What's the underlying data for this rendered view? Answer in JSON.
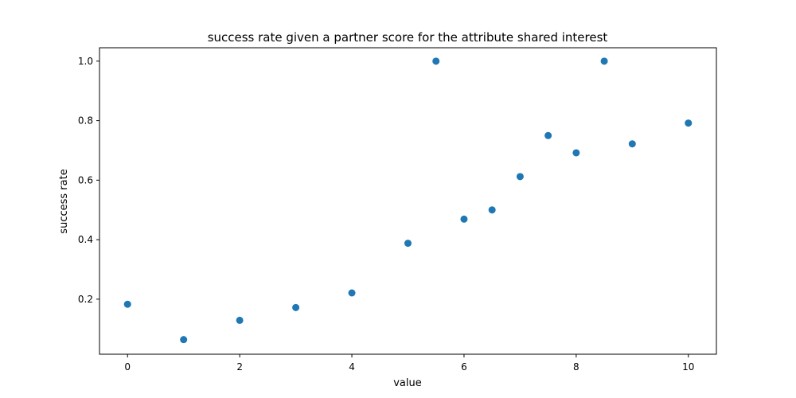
{
  "chart_data": {
    "type": "scatter",
    "title": "success rate given a partner score for the attribute shared interest",
    "xlabel": "value",
    "ylabel": "success rate",
    "xlim": [
      -0.5,
      10.5
    ],
    "ylim": [
      0.015,
      1.045
    ],
    "xticks": [
      0,
      2,
      4,
      6,
      8,
      10
    ],
    "yticks": [
      0.2,
      0.4,
      0.6,
      0.8,
      1.0
    ],
    "xtick_labels": [
      "0",
      "2",
      "4",
      "6",
      "8",
      "10"
    ],
    "ytick_labels": [
      "0.2",
      "0.4",
      "0.6",
      "0.8",
      "1.0"
    ],
    "grid": false,
    "color": "#1f77b4",
    "points": [
      {
        "x": 0,
        "y": 0.183
      },
      {
        "x": 1,
        "y": 0.064
      },
      {
        "x": 2,
        "y": 0.129
      },
      {
        "x": 3,
        "y": 0.172
      },
      {
        "x": 4,
        "y": 0.221
      },
      {
        "x": 5,
        "y": 0.388
      },
      {
        "x": 5.5,
        "y": 1.0
      },
      {
        "x": 6,
        "y": 0.469
      },
      {
        "x": 6.5,
        "y": 0.5
      },
      {
        "x": 7,
        "y": 0.612
      },
      {
        "x": 7.5,
        "y": 0.75
      },
      {
        "x": 8,
        "y": 0.692
      },
      {
        "x": 8.5,
        "y": 1.0
      },
      {
        "x": 9,
        "y": 0.722
      },
      {
        "x": 10,
        "y": 0.792
      }
    ]
  }
}
